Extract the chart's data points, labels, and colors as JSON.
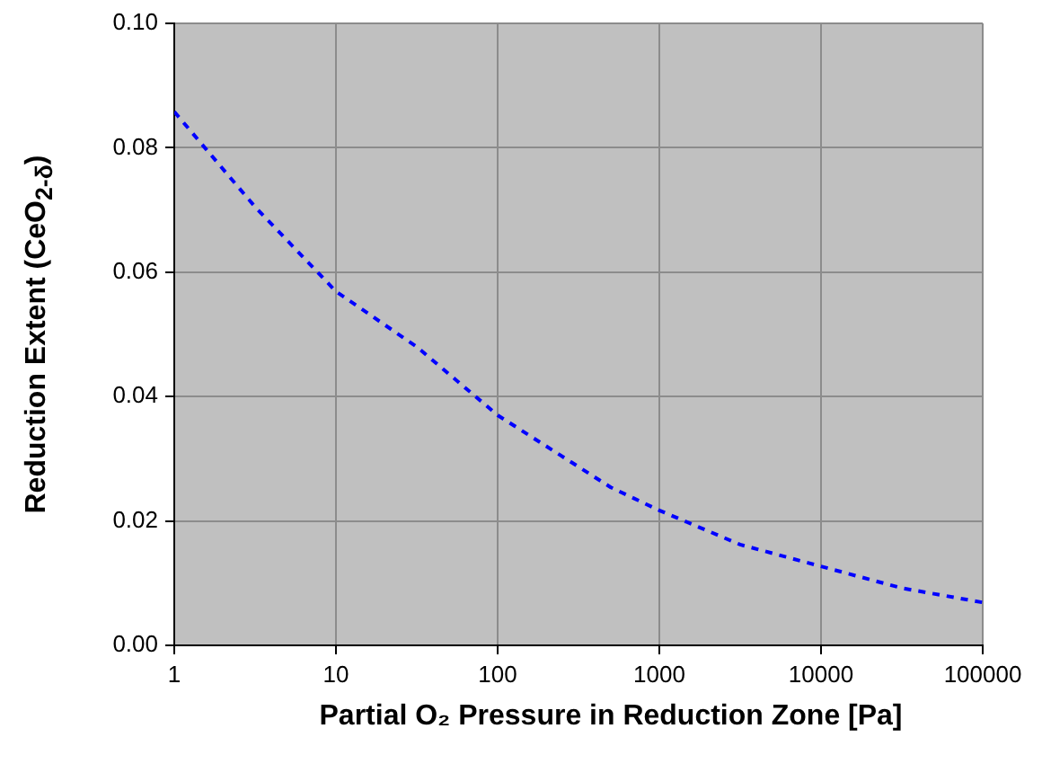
{
  "chart_data": {
    "type": "line",
    "xlabel": "Partial O₂ Pressure in Reduction Zone [Pa]",
    "ylabel": "Reduction Extent (CeO$_{2-δ}$)",
    "log": "x",
    "grid": true,
    "legend": false,
    "marker": "none",
    "line_style": "dashed",
    "xlim": [
      1,
      100000
    ],
    "xticks": [
      1,
      10,
      100,
      1000,
      10000,
      100000
    ],
    "ylim": [
      0,
      0.1
    ],
    "yticks": [
      {
        "value": 0,
        "label": "0.00"
      },
      {
        "value": 0.02,
        "label": "0.02"
      },
      {
        "value": 0.04,
        "label": "0.04"
      },
      {
        "value": 0.06,
        "label": "0.06"
      },
      {
        "value": 0.08,
        "label": "0.08"
      },
      {
        "value": 0.1,
        "label": "0.10"
      }
    ],
    "series": [
      {
        "color": "#0000ff",
        "x": [
          1,
          3.16,
          10,
          31.6,
          100,
          501,
          1000,
          3162,
          10000,
          31623,
          100000
        ],
        "values": [
          0.0858,
          0.0705,
          0.0569,
          0.048,
          0.037,
          0.0254,
          0.0217,
          0.0162,
          0.0127,
          0.0092,
          0.0069
        ]
      }
    ]
  }
}
